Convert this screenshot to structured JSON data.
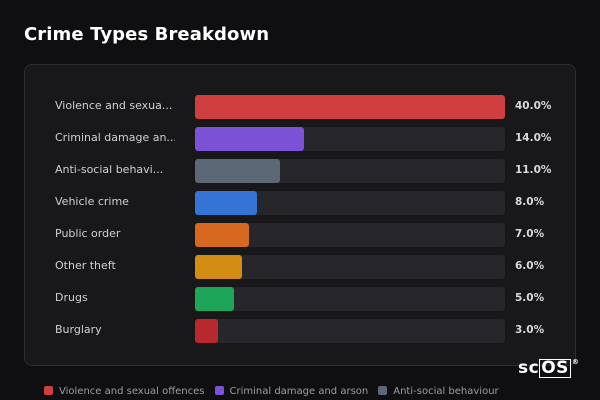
{
  "title": "Crime Types Breakdown",
  "chart_data": {
    "type": "bar",
    "orientation": "horizontal",
    "title": "Crime Types Breakdown",
    "xlim": [
      0,
      40
    ],
    "unit": "%",
    "categories": [
      {
        "label": "Violence and sexua...",
        "value": 40.0,
        "value_label": "40.0%",
        "color": "#cf3f40"
      },
      {
        "label": "Criminal damage an...",
        "value": 14.0,
        "value_label": "14.0%",
        "color": "#7b52d6"
      },
      {
        "label": "Anti-social behavi...",
        "value": 11.0,
        "value_label": "11.0%",
        "color": "#5d6877"
      },
      {
        "label": "Vehicle crime",
        "value": 8.0,
        "value_label": "8.0%",
        "color": "#3673d6"
      },
      {
        "label": "Public order",
        "value": 7.0,
        "value_label": "7.0%",
        "color": "#d7681f"
      },
      {
        "label": "Other theft",
        "value": 6.0,
        "value_label": "6.0%",
        "color": "#d48d14"
      },
      {
        "label": "Drugs",
        "value": 5.0,
        "value_label": "5.0%",
        "color": "#1da55a"
      },
      {
        "label": "Burglary",
        "value": 3.0,
        "value_label": "3.0%",
        "color": "#b8282c"
      }
    ],
    "legend": {
      "placement": "bottom",
      "entries": [
        {
          "name": "Violence and sexual offences",
          "color": "#cf3f40"
        },
        {
          "name": "Criminal damage and arson",
          "color": "#7b52d6"
        },
        {
          "name": "Anti-social behaviour",
          "color": "#5d6877"
        }
      ]
    }
  },
  "logo": {
    "text_sc": "sc",
    "text_os": "OS",
    "reg": "®"
  }
}
